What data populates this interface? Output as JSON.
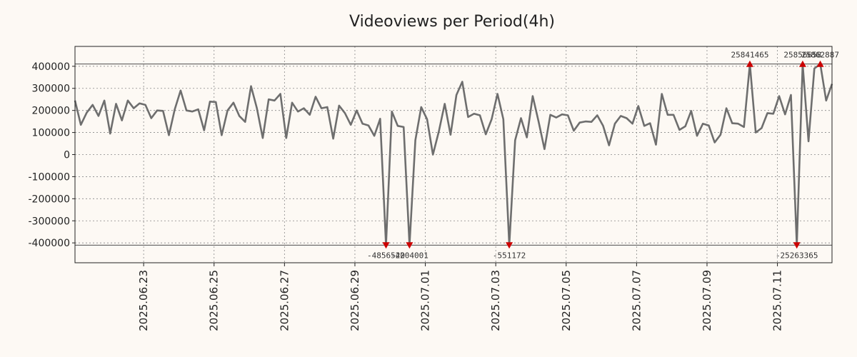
{
  "chart_data": {
    "type": "line",
    "title": "Videoviews per Period(4h)",
    "xlabel": "",
    "ylabel": "",
    "ylim": [
      -490000,
      490000
    ],
    "clip_limits": [
      -410000,
      410000
    ],
    "y_ticks": [
      {
        "value": 400000,
        "label": "400000"
      },
      {
        "value": 300000,
        "label": "300000"
      },
      {
        "value": 200000,
        "label": "200000"
      },
      {
        "value": 100000,
        "label": "100000"
      },
      {
        "value": 0,
        "label": "0"
      },
      {
        "value": -100000,
        "label": "-100000"
      },
      {
        "value": -200000,
        "label": "-200000"
      },
      {
        "value": -300000,
        "label": "-300000"
      },
      {
        "value": -400000,
        "label": "-400000"
      }
    ],
    "x_range_days": [
      0,
      21.5
    ],
    "x_ticks": [
      {
        "day": 1.95,
        "label": "2025.06.23"
      },
      {
        "day": 3.95,
        "label": "2025.06.25"
      },
      {
        "day": 5.95,
        "label": "2025.06.27"
      },
      {
        "day": 7.95,
        "label": "2025.06.29"
      },
      {
        "day": 9.95,
        "label": "2025.07.01"
      },
      {
        "day": 11.95,
        "label": "2025.07.03"
      },
      {
        "day": 13.95,
        "label": "2025.07.05"
      },
      {
        "day": 15.95,
        "label": "2025.07.07"
      },
      {
        "day": 17.95,
        "label": "2025.07.09"
      },
      {
        "day": 19.95,
        "label": "2025.07.11"
      }
    ],
    "series": [
      {
        "name": "videoviews",
        "values": [
          245000,
          135000,
          190000,
          225000,
          175000,
          245000,
          95000,
          230000,
          155000,
          245000,
          210000,
          232000,
          225000,
          165000,
          200000,
          198000,
          88000,
          205000,
          290000,
          200000,
          195000,
          205000,
          110000,
          240000,
          238000,
          88000,
          200000,
          235000,
          175000,
          148000,
          310000,
          210000,
          75000,
          250000,
          245000,
          275000,
          75000,
          235000,
          195000,
          210000,
          180000,
          262000,
          210000,
          215000,
          72000,
          222000,
          188000,
          135000,
          200000,
          140000,
          132000,
          85000,
          162000,
          -410000,
          195000,
          130000,
          125000,
          -410000,
          65000,
          215000,
          160000,
          0,
          105000,
          230000,
          90000,
          270000,
          330000,
          170000,
          185000,
          178000,
          92000,
          160000,
          275000,
          160000,
          -410000,
          65000,
          165000,
          78000,
          265000,
          150000,
          25000,
          180000,
          168000,
          182000,
          178000,
          108000,
          145000,
          150000,
          148000,
          178000,
          130000,
          42000,
          140000,
          175000,
          165000,
          140000,
          220000,
          130000,
          142000,
          45000,
          275000,
          180000,
          180000,
          112000,
          128000,
          198000,
          85000,
          140000,
          132000,
          55000,
          90000,
          210000,
          142000,
          140000,
          125000,
          410000,
          100000,
          120000,
          188000,
          185000,
          265000,
          182000,
          270000,
          -410000,
          410000,
          60000,
          390000,
          410000,
          245000,
          320000
        ]
      }
    ],
    "outliers": [
      {
        "index": 53,
        "direction": "down",
        "label": "-4856520"
      },
      {
        "index": 57,
        "direction": "down",
        "label": "-4204001"
      },
      {
        "index": 74,
        "direction": "down",
        "label": "-551172"
      },
      {
        "index": 115,
        "direction": "up",
        "label": "25841465"
      },
      {
        "index": 123,
        "direction": "down",
        "label": "-25263365"
      },
      {
        "index": 124,
        "direction": "up",
        "label": "25856658"
      },
      {
        "index": 127,
        "direction": "up",
        "label": "25862887"
      }
    ],
    "colors": {
      "background": "#fdf9f4",
      "line": "#6e6e6e",
      "marker": "#cc0000"
    }
  }
}
